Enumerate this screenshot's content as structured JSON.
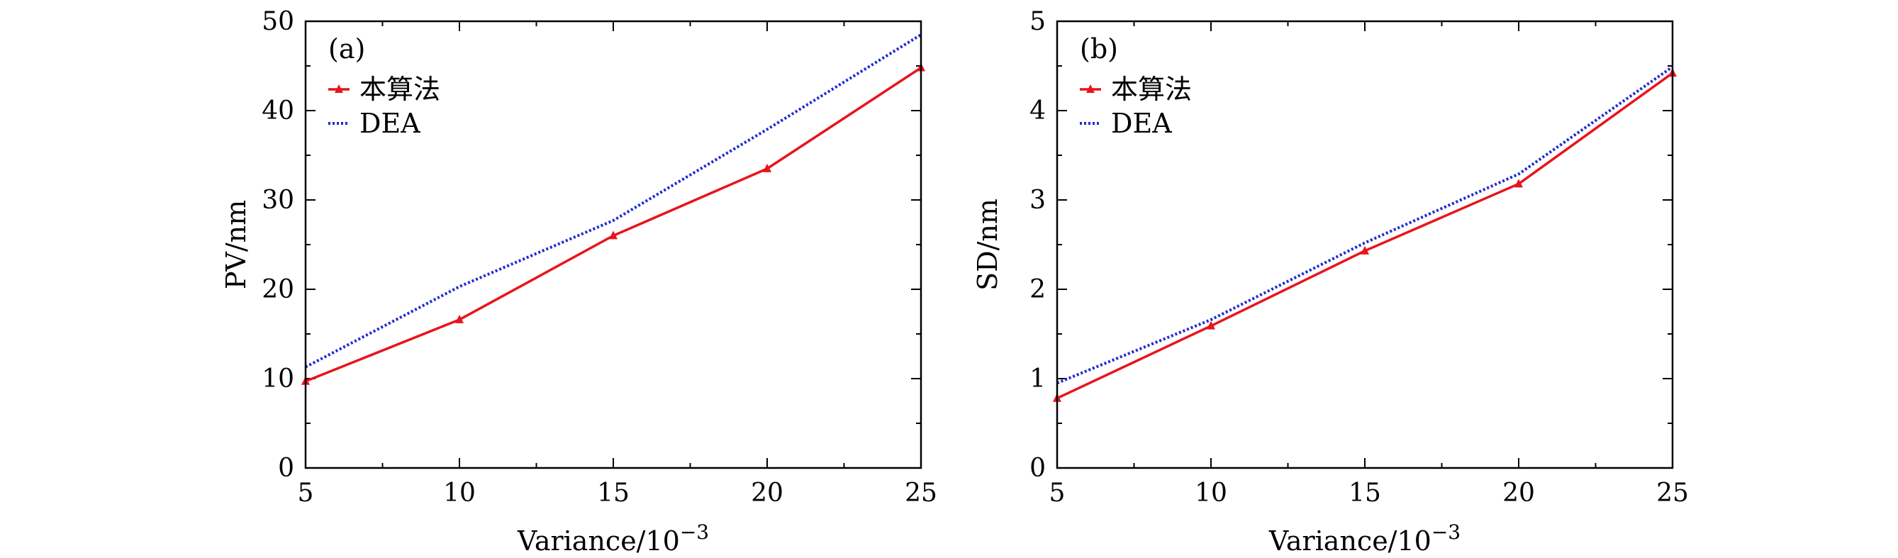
{
  "chart_data": [
    {
      "type": "line",
      "panel_label": "(a)",
      "xlabel": "Variance/10",
      "xlabel_exponent": "−3",
      "ylabel": "PV/nm",
      "xlim": [
        5,
        25
      ],
      "ylim": [
        0,
        50
      ],
      "x_ticks": [
        5,
        10,
        15,
        20,
        25
      ],
      "y_ticks": [
        0,
        10,
        20,
        30,
        40,
        50
      ],
      "x_tick_labels": [
        "5",
        "10",
        "15",
        "20",
        "25"
      ],
      "y_tick_labels": [
        "0",
        "10",
        "20",
        "30",
        "40",
        "50"
      ],
      "legend_position": "top-left",
      "series": [
        {
          "name": "本算法",
          "style": "solid-triangle",
          "color": "#e8141c",
          "x": [
            5,
            10,
            15,
            20,
            25
          ],
          "y": [
            9.7,
            16.6,
            26.0,
            33.5,
            44.8
          ]
        },
        {
          "name": "DEA",
          "style": "dotted",
          "color": "#1f2bd0",
          "x": [
            5,
            10,
            15,
            20,
            25
          ],
          "y": [
            11.3,
            20.3,
            27.7,
            37.9,
            48.5
          ]
        }
      ]
    },
    {
      "type": "line",
      "panel_label": "(b)",
      "xlabel": "Variance/10",
      "xlabel_exponent": "−3",
      "ylabel": "SD/nm",
      "xlim": [
        5,
        25
      ],
      "ylim": [
        0,
        5
      ],
      "x_ticks": [
        5,
        10,
        15,
        20,
        25
      ],
      "y_ticks": [
        0,
        1,
        2,
        3,
        4,
        5
      ],
      "x_tick_labels": [
        "5",
        "10",
        "15",
        "20",
        "25"
      ],
      "y_tick_labels": [
        "0",
        "1",
        "2",
        "3",
        "4",
        "5"
      ],
      "legend_position": "top-left",
      "series": [
        {
          "name": "本算法",
          "style": "solid-triangle",
          "color": "#e8141c",
          "x": [
            5,
            10,
            15,
            20,
            25
          ],
          "y": [
            0.78,
            1.59,
            2.43,
            3.18,
            4.42
          ]
        },
        {
          "name": "DEA",
          "style": "dotted",
          "color": "#1f2bd0",
          "x": [
            5,
            10,
            15,
            20,
            25
          ],
          "y": [
            0.95,
            1.66,
            2.52,
            3.29,
            4.49
          ]
        }
      ]
    }
  ]
}
